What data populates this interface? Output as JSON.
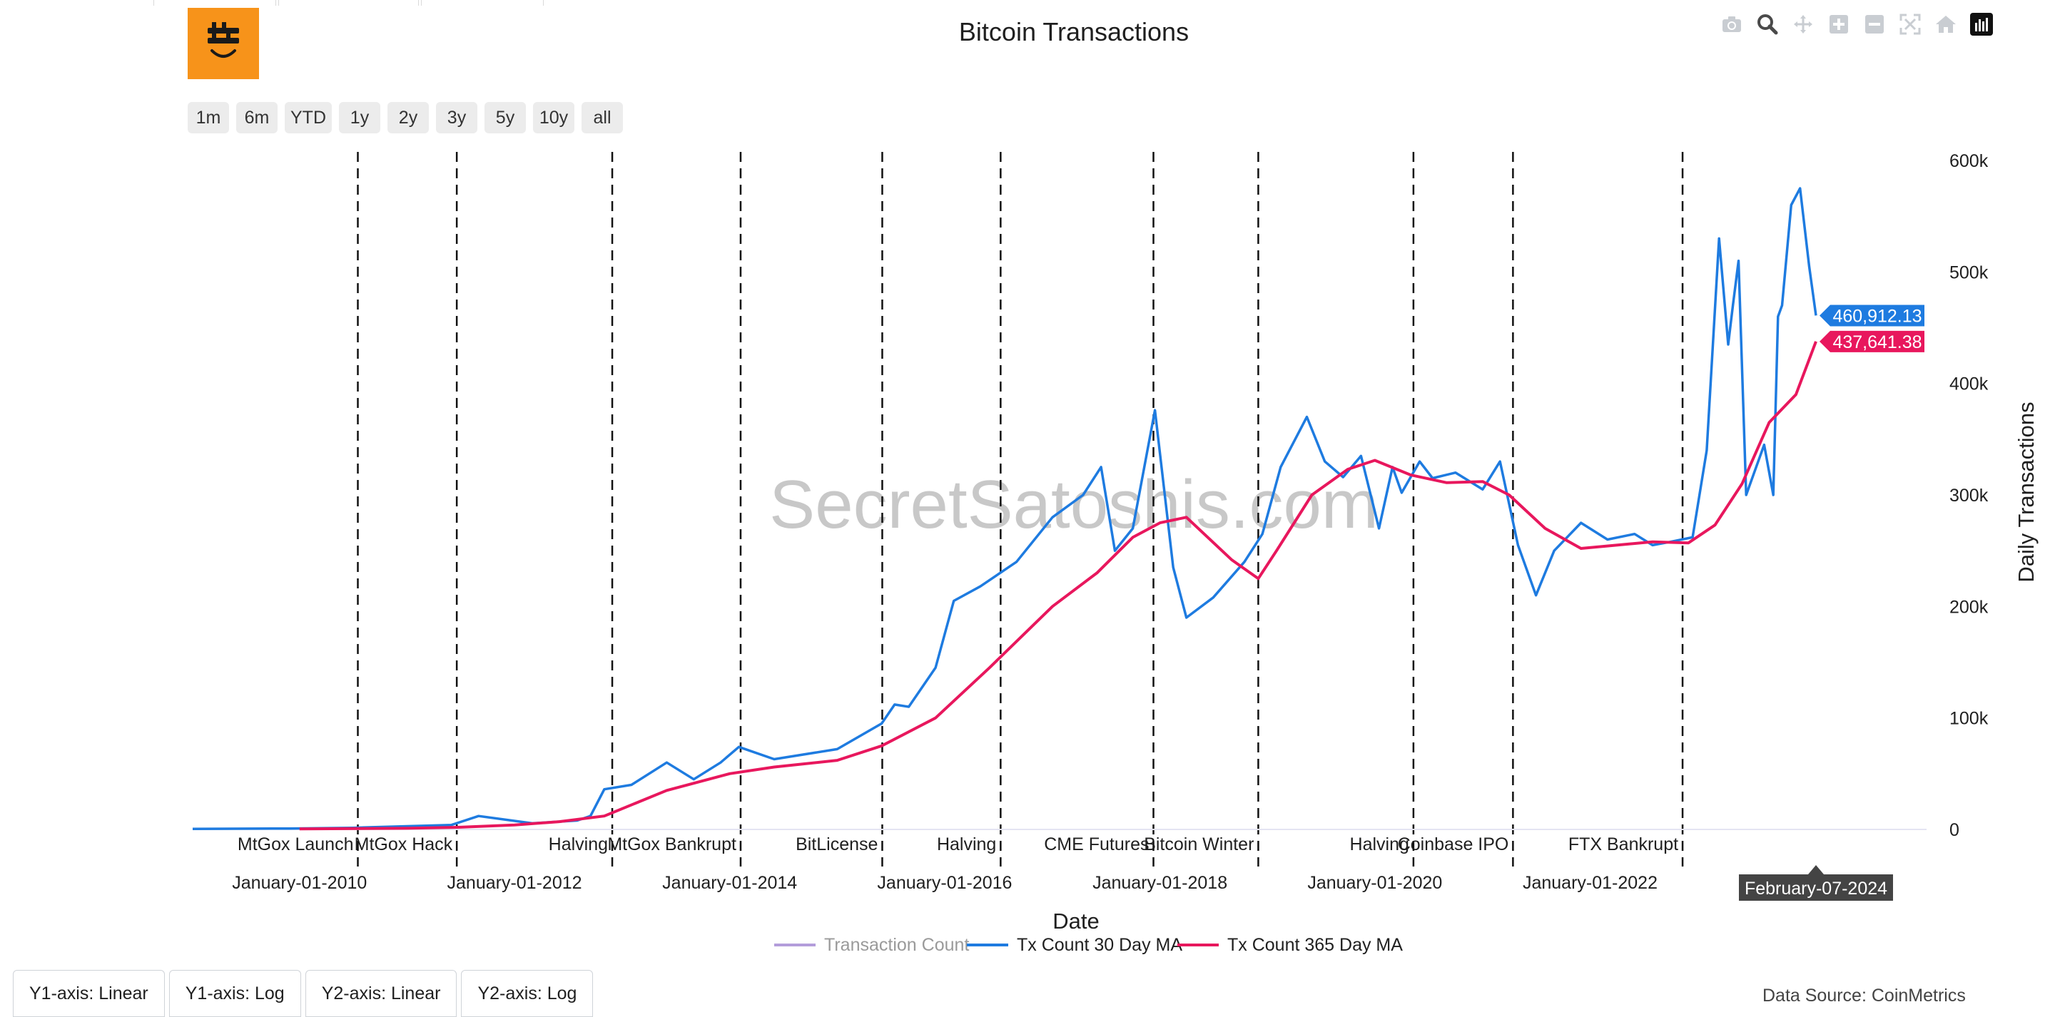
{
  "brand": {
    "logo_icon": "bitcoin-face-icon",
    "accent": "#f7931a"
  },
  "toolbar": {
    "icons": [
      "camera-icon",
      "zoom-icon",
      "pan-icon",
      "zoom-in-icon",
      "zoom-out-icon",
      "autoscale-icon",
      "reset-axes-icon",
      "plotly-logo-icon"
    ]
  },
  "range_buttons": [
    "1m",
    "6m",
    "YTD",
    "1y",
    "2y",
    "3y",
    "5y",
    "10y",
    "all"
  ],
  "axis_tabs": [
    "Y1-axis: Linear",
    "Y1-axis: Log",
    "Y2-axis: Linear",
    "Y2-axis: Log"
  ],
  "watermark": "SecretSatoshis.com",
  "data_source": "Data Source: CoinMetrics",
  "chart_data": {
    "type": "line",
    "title": "Bitcoin Transactions",
    "xlabel": "Date",
    "ylabel": "Daily Transactions",
    "xlim": [
      "2009-01-03",
      "2024-02-07"
    ],
    "ylim": [
      0,
      600000
    ],
    "y_ticks": [
      0,
      100000,
      200000,
      300000,
      400000,
      500000,
      600000
    ],
    "y_tick_labels": [
      "0",
      "100k",
      "200k",
      "300k",
      "400k",
      "500k",
      "600k"
    ],
    "x_ticks": [
      "2010-01-01",
      "2012-01-01",
      "2014-01-01",
      "2016-01-01",
      "2018-01-01",
      "2020-01-01",
      "2022-01-01"
    ],
    "x_tick_labels": [
      "January-01-2010",
      "January-01-2012",
      "January-01-2014",
      "January-01-2016",
      "January-01-2018",
      "January-01-2020",
      "January-01-2022"
    ],
    "legend": "bottom-center",
    "grid": false,
    "events": [
      {
        "date": "2010-07-18",
        "label": "MtGox Launch"
      },
      {
        "date": "2011-06-19",
        "label": "MtGox Hack"
      },
      {
        "date": "2012-11-28",
        "label": "Halving"
      },
      {
        "date": "2014-02-07",
        "label": "MtGox Bankrupt"
      },
      {
        "date": "2015-06-03",
        "label": "BitLicense"
      },
      {
        "date": "2016-07-09",
        "label": "Halving"
      },
      {
        "date": "2017-12-10",
        "label": "CME Futures"
      },
      {
        "date": "2018-12-01",
        "label": "Bitcoin Winter"
      },
      {
        "date": "2020-05-11",
        "label": "Halving"
      },
      {
        "date": "2021-04-14",
        "label": "Coinbase IPO"
      },
      {
        "date": "2022-11-11",
        "label": "FTX Bankrupt"
      }
    ],
    "hover": {
      "date_label": "February-07-2024",
      "series_30d_label": "460,912.13",
      "series_365d_label": "437,641.38"
    },
    "series": [
      {
        "name": "Transaction Count",
        "color": "#b39ddb",
        "visible": false,
        "values": []
      },
      {
        "name": "Tx Count 30 Day MA",
        "color": "#1e7be0",
        "x": [
          "2009-01-03",
          "2009-12-01",
          "2010-07-01",
          "2011-06-01",
          "2011-09-01",
          "2012-03-01",
          "2012-08-01",
          "2012-09-15",
          "2012-11-01",
          "2013-02-01",
          "2013-06-01",
          "2013-09-01",
          "2013-12-01",
          "2014-02-01",
          "2014-06-01",
          "2015-01-01",
          "2015-06-01",
          "2015-07-15",
          "2015-09-01",
          "2015-12-01",
          "2016-02-01",
          "2016-05-01",
          "2016-09-01",
          "2017-01-01",
          "2017-04-15",
          "2017-06-15",
          "2017-08-01",
          "2017-10-01",
          "2017-12-15",
          "2018-02-15",
          "2018-04-01",
          "2018-07-01",
          "2018-10-15",
          "2018-12-15",
          "2019-02-15",
          "2019-05-15",
          "2019-07-15",
          "2019-09-15",
          "2019-11-15",
          "2020-01-15",
          "2020-03-01",
          "2020-04-01",
          "2020-06-01",
          "2020-07-15",
          "2020-10-01",
          "2021-01-01",
          "2021-03-01",
          "2021-05-01",
          "2021-07-01",
          "2021-09-01",
          "2021-12-01",
          "2022-03-01",
          "2022-06-01",
          "2022-08-01",
          "2022-10-01",
          "2022-12-15",
          "2023-02-01",
          "2023-03-15",
          "2023-04-15",
          "2023-05-01",
          "2023-05-20",
          "2023-06-15",
          "2023-08-15",
          "2023-09-15",
          "2023-10-01",
          "2023-10-15",
          "2023-11-15",
          "2023-12-15",
          "2024-01-15",
          "2024-02-07"
        ],
        "values": [
          500,
          800,
          1500,
          4000,
          12000,
          5500,
          8000,
          12000,
          36000,
          40000,
          60000,
          45000,
          60000,
          74000,
          63000,
          72000,
          95000,
          112000,
          110000,
          145000,
          205000,
          218000,
          240000,
          280000,
          300000,
          325000,
          250000,
          270000,
          376000,
          235000,
          190000,
          208000,
          240000,
          265000,
          325000,
          370000,
          330000,
          316000,
          335000,
          270000,
          325000,
          302000,
          330000,
          315000,
          320000,
          305000,
          330000,
          255000,
          210000,
          250000,
          275000,
          260000,
          265000,
          255000,
          258000,
          262000,
          340000,
          530000,
          435000,
          470000,
          510000,
          300000,
          345000,
          300000,
          460000,
          470000,
          560000,
          575000,
          505000,
          460912
        ]
      },
      {
        "name": "Tx Count 365 Day MA",
        "color": "#e8175d",
        "x": [
          "2010-01-01",
          "2011-01-01",
          "2011-07-01",
          "2012-01-01",
          "2012-06-01",
          "2012-11-01",
          "2013-06-01",
          "2014-01-01",
          "2014-06-01",
          "2015-01-01",
          "2015-06-01",
          "2015-12-01",
          "2016-06-01",
          "2017-01-01",
          "2017-06-01",
          "2017-10-01",
          "2018-01-01",
          "2018-04-01",
          "2018-09-01",
          "2018-12-01",
          "2019-02-01",
          "2019-06-01",
          "2019-10-01",
          "2020-01-01",
          "2020-05-01",
          "2020-09-01",
          "2021-01-01",
          "2021-04-01",
          "2021-08-01",
          "2021-12-01",
          "2022-04-01",
          "2022-08-01",
          "2022-12-01",
          "2023-03-01",
          "2023-06-01",
          "2023-09-01",
          "2023-12-01",
          "2024-02-07"
        ],
        "values": [
          500,
          1000,
          2000,
          4000,
          7000,
          12000,
          35000,
          50000,
          56000,
          62000,
          75000,
          100000,
          145000,
          200000,
          230000,
          262000,
          275000,
          280000,
          242000,
          225000,
          250000,
          300000,
          323000,
          331000,
          318000,
          311000,
          312000,
          300000,
          270000,
          252000,
          255000,
          258000,
          257000,
          273000,
          310000,
          365000,
          390000,
          437641
        ]
      }
    ]
  }
}
